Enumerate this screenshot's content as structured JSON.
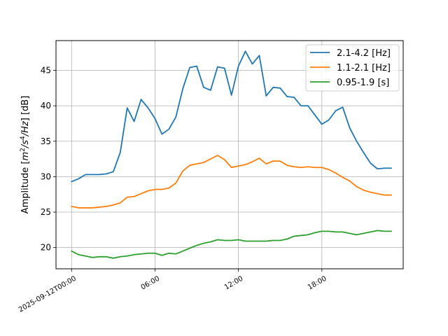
{
  "chart_data": {
    "type": "line",
    "ylabel": "Amplitude [m²/s⁴/Hz] [dB]",
    "ylabel_parts": {
      "prefix": "Amplitude [",
      "m": "m",
      "sup2": "2",
      "s": "/s",
      "sup4": "4",
      "hz": "/Hz",
      "suffix": "] [dB]"
    },
    "xlabel": "",
    "x_ticks": [
      {
        "hour": 0,
        "label": "2025-09-12T00:00"
      },
      {
        "hour": 6,
        "label": "06:00"
      },
      {
        "hour": 12,
        "label": "12:00"
      },
      {
        "hour": 18,
        "label": "18:00"
      }
    ],
    "y_ticks": [
      20,
      25,
      30,
      35,
      40,
      45
    ],
    "xlim_hours": [
      -1.12,
      23.85
    ],
    "ylim": [
      17.0,
      49.2
    ],
    "grid": true,
    "legend_position": "top-right",
    "x_hours": [
      0,
      0.5,
      1,
      1.5,
      2,
      2.5,
      3,
      3.5,
      4,
      4.5,
      5,
      5.5,
      6,
      6.5,
      7,
      7.5,
      8,
      8.5,
      9,
      9.5,
      10,
      10.5,
      11,
      11.5,
      12,
      12.5,
      13,
      13.5,
      14,
      14.5,
      15,
      15.5,
      16,
      16.5,
      17,
      17.5,
      18,
      18.5,
      19,
      19.5,
      20,
      20.5,
      21,
      21.5,
      22,
      22.5,
      23
    ],
    "series": [
      {
        "name": "2.1-4.2 [Hz]",
        "color": "#1f77b4",
        "values": [
          29.3,
          29.7,
          30.3,
          30.3,
          30.3,
          30.4,
          30.7,
          33.4,
          39.7,
          37.8,
          40.9,
          39.7,
          38.2,
          36.0,
          36.7,
          38.4,
          42.4,
          45.4,
          45.6,
          42.6,
          42.2,
          45.5,
          45.3,
          41.5,
          45.6,
          47.7,
          45.9,
          47.1,
          41.4,
          42.6,
          42.5,
          41.3,
          41.2,
          40.0,
          40.0,
          38.7,
          37.4,
          38.0,
          39.3,
          39.8,
          36.9,
          35.0,
          33.4,
          31.9,
          31.1,
          31.2,
          31.2
        ]
      },
      {
        "name": "1.1-2.1 [Hz]",
        "color": "#ff7f0e",
        "values": [
          25.8,
          25.6,
          25.6,
          25.6,
          25.7,
          25.8,
          26.0,
          26.3,
          27.1,
          27.2,
          27.6,
          28.0,
          28.2,
          28.2,
          28.4,
          29.1,
          30.8,
          31.6,
          31.8,
          32.0,
          32.5,
          33.0,
          32.4,
          31.3,
          31.5,
          31.7,
          32.1,
          32.6,
          31.8,
          32.2,
          32.2,
          31.6,
          31.4,
          31.3,
          31.4,
          31.3,
          31.3,
          31.0,
          30.5,
          29.9,
          29.4,
          28.6,
          28.1,
          27.8,
          27.6,
          27.4,
          27.4
        ]
      },
      {
        "name": "0.95-1.9 [s]",
        "color": "#2ca02c",
        "values": [
          19.5,
          19.0,
          18.8,
          18.6,
          18.7,
          18.7,
          18.5,
          18.7,
          18.8,
          19.0,
          19.1,
          19.2,
          19.2,
          18.9,
          19.2,
          19.1,
          19.5,
          19.9,
          20.3,
          20.6,
          20.8,
          21.1,
          21.0,
          21.0,
          21.1,
          20.9,
          20.9,
          20.9,
          20.9,
          21.0,
          21.0,
          21.2,
          21.6,
          21.7,
          21.8,
          22.1,
          22.3,
          22.3,
          22.2,
          22.2,
          22.0,
          21.8,
          22.0,
          22.2,
          22.4,
          22.3,
          22.3
        ]
      }
    ]
  }
}
